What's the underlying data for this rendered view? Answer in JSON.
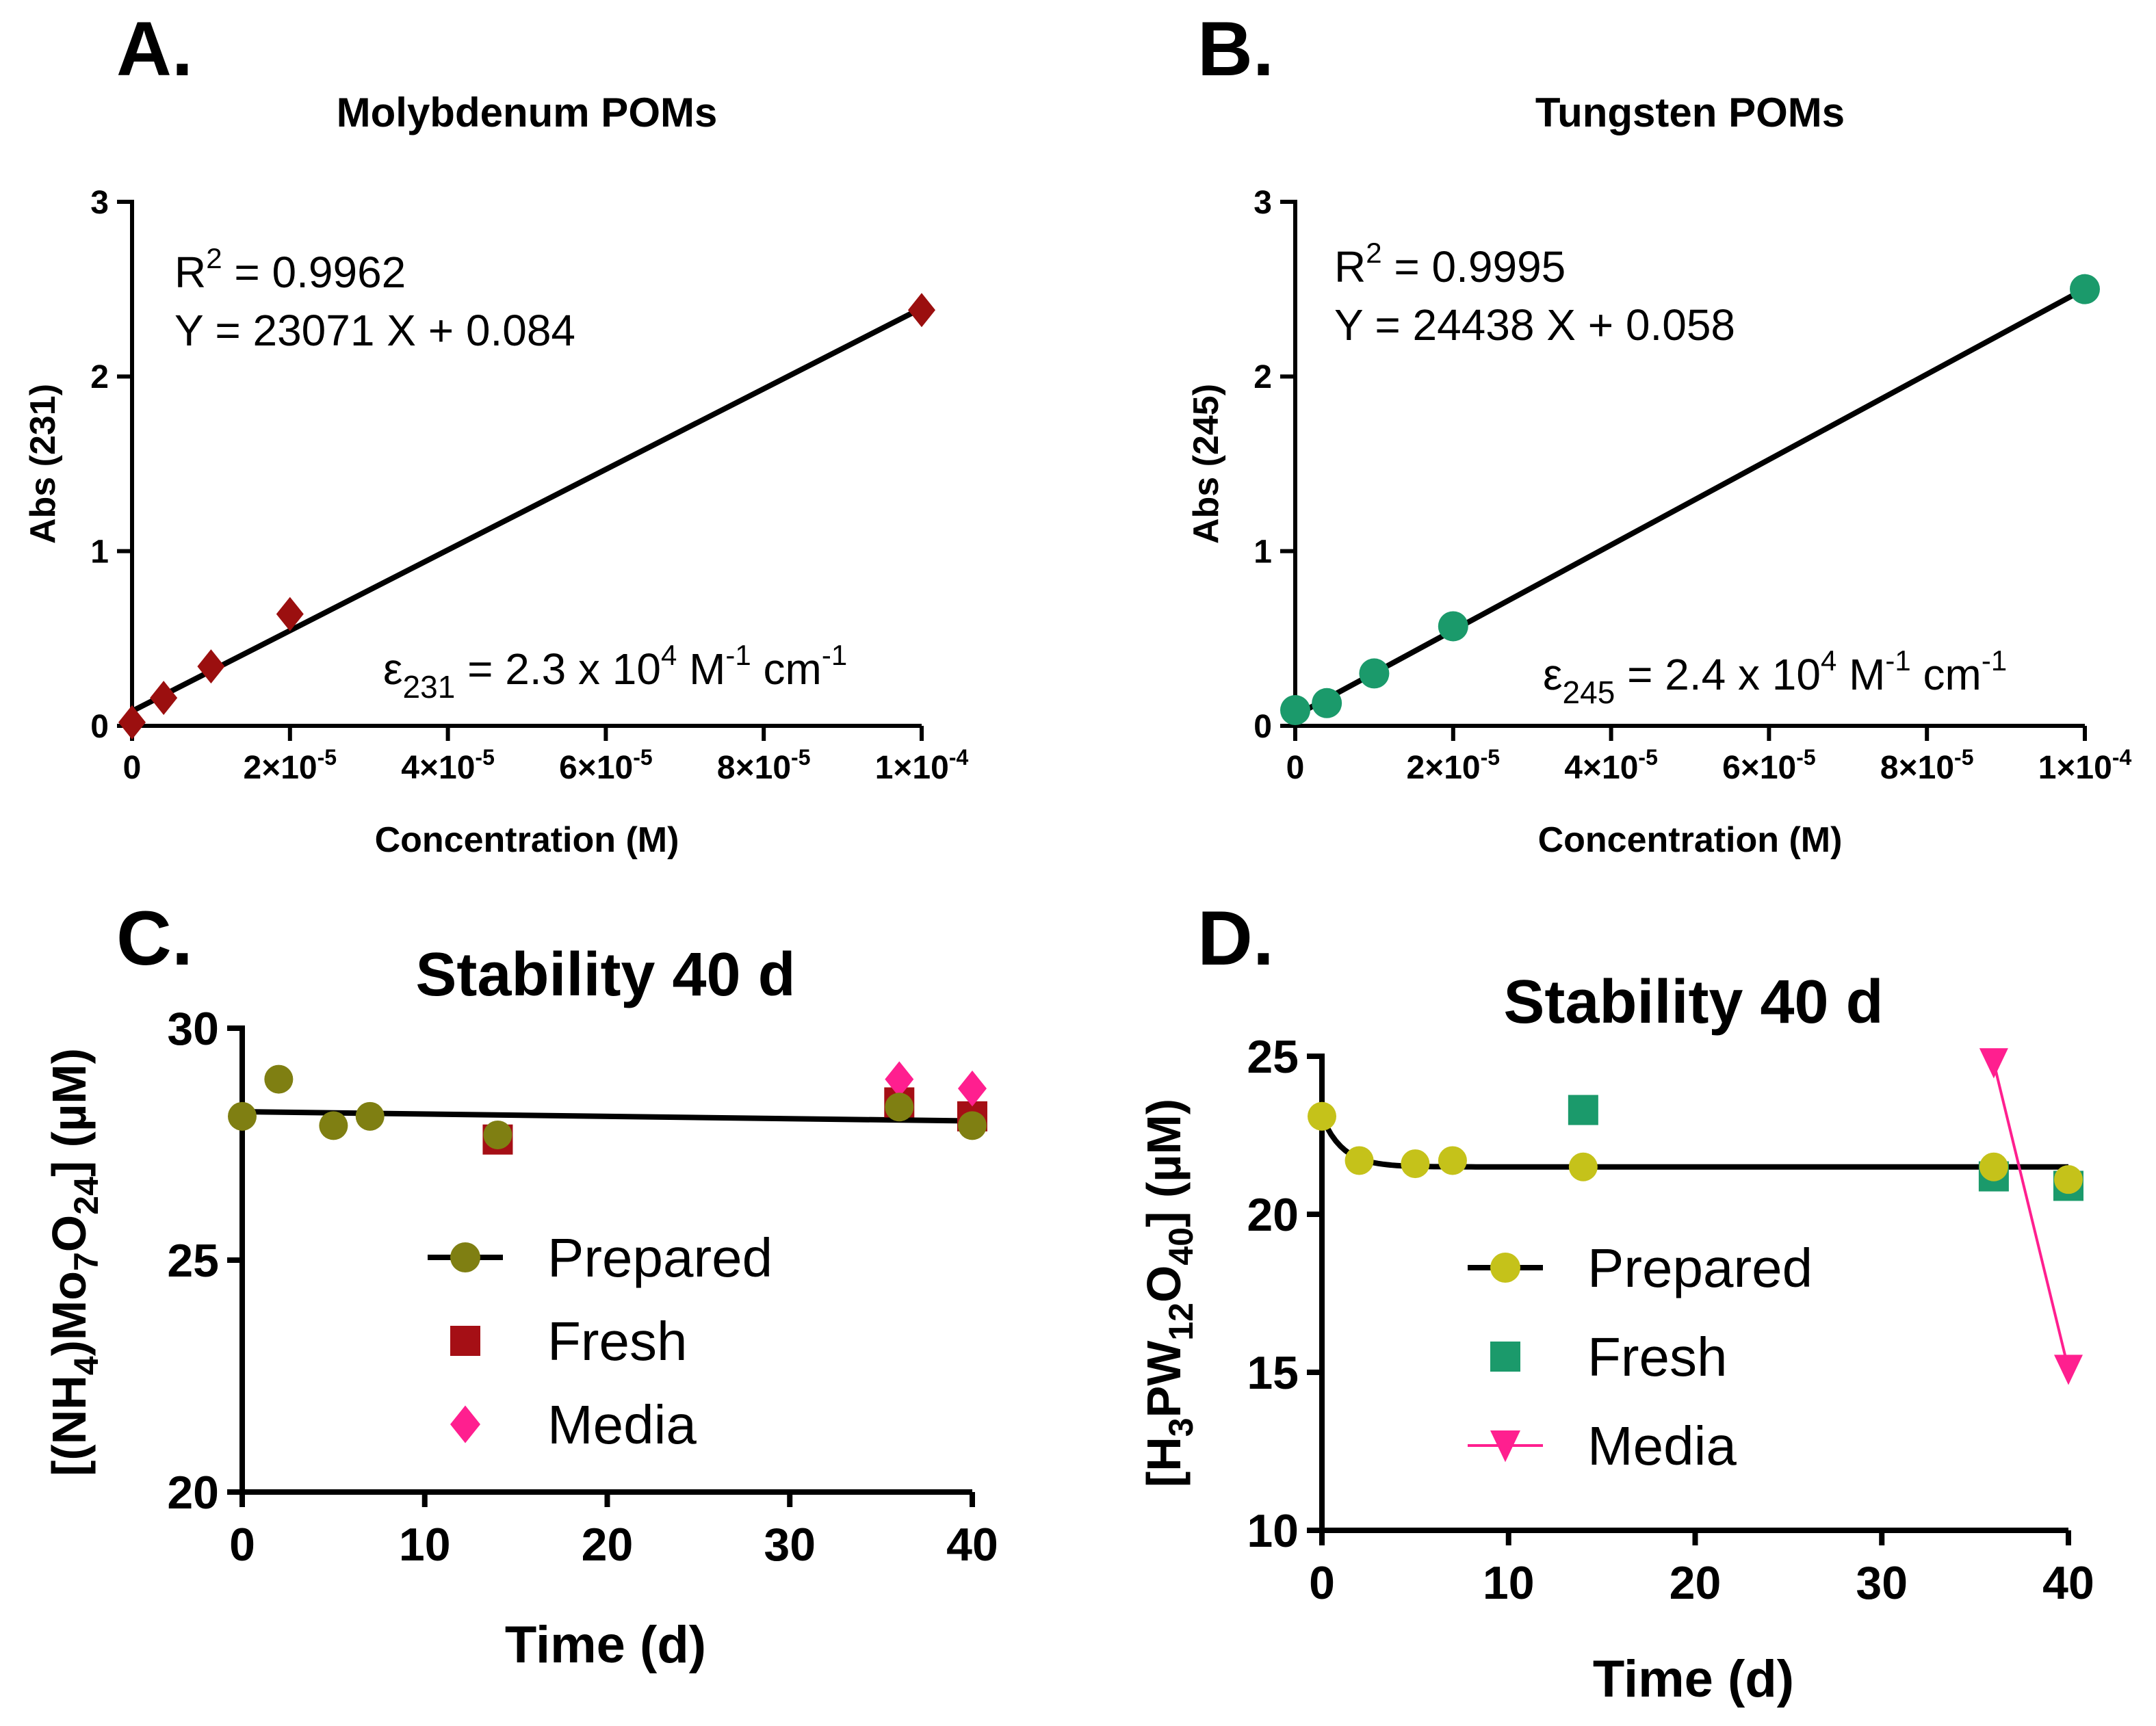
{
  "colors": {
    "moly": "#9b0f0f",
    "tung": "#1b9a6b",
    "prepared_c": "#7f7f12",
    "fresh_c": "#a50f15",
    "media": "#ff1f8f",
    "prepared_d": "#c5c21a",
    "fresh_d": "#1b9a6b"
  },
  "chart_data": [
    {
      "panel": "A.",
      "type": "scatter",
      "title": "Molybdenum POMs",
      "xlabel": "Concentration (M)",
      "ylabel": "Abs (231)",
      "xlim": [
        0,
        0.0001
      ],
      "ylim": [
        0,
        3
      ],
      "yticks": [
        "0",
        "1",
        "2",
        "3"
      ],
      "xticks": [
        {
          "base": "0",
          "exp": ""
        },
        {
          "base": "2×10",
          "exp": "-5"
        },
        {
          "base": "4×10",
          "exp": "-5"
        },
        {
          "base": "6×10",
          "exp": "-5"
        },
        {
          "base": "8×10",
          "exp": "-5"
        },
        {
          "base": "1×10",
          "exp": "-4"
        }
      ],
      "x": [
        0,
        4e-06,
        1e-05,
        2e-05,
        0.0001
      ],
      "y": [
        0.02,
        0.16,
        0.34,
        0.64,
        2.38
      ],
      "fit": {
        "slope": 23071,
        "intercept": 0.084
      },
      "annot_r2": {
        "pre": "R",
        "sup": "2",
        "post": " = 0.9962"
      },
      "annot_eq": "Y = 23071 X + 0.084",
      "annot_eps": {
        "sym": "ε",
        "sub": "231",
        "mid": " = 2.3 x 10",
        "e1": "4",
        "m2": " M",
        "e2": "-1",
        "m3": " cm",
        "e3": "-1"
      }
    },
    {
      "panel": "B.",
      "type": "scatter",
      "title": "Tungsten POMs",
      "xlabel": "Concentration (M)",
      "ylabel": "Abs (245)",
      "xlim": [
        0,
        0.0001
      ],
      "ylim": [
        0,
        3
      ],
      "yticks": [
        "0",
        "1",
        "2",
        "3"
      ],
      "xticks": [
        {
          "base": "0",
          "exp": ""
        },
        {
          "base": "2×10",
          "exp": "-5"
        },
        {
          "base": "4×10",
          "exp": "-5"
        },
        {
          "base": "6×10",
          "exp": "-5"
        },
        {
          "base": "8×10",
          "exp": "-5"
        },
        {
          "base": "1×10",
          "exp": "-4"
        }
      ],
      "x": [
        0,
        4e-06,
        1e-05,
        2e-05,
        0.0001
      ],
      "y": [
        0.09,
        0.13,
        0.3,
        0.57,
        2.5
      ],
      "fit": {
        "slope": 24438,
        "intercept": 0.058
      },
      "annot_r2": {
        "pre": "R",
        "sup": "2",
        "post": " = 0.9995"
      },
      "annot_eq": "Y = 24438 X + 0.058",
      "annot_eps": {
        "sym": "ε",
        "sub": "245",
        "mid": " = 2.4 x 10",
        "e1": "4",
        "m2": " M",
        "e2": "-1",
        "m3": " cm",
        "e3": "-1"
      }
    },
    {
      "panel": "C.",
      "type": "scatter",
      "title": "Stability 40 d",
      "xlabel": "Time (d)",
      "ylabel": {
        "a": "[(NH",
        "s1": "4",
        "b": ")Mo",
        "s2": "7",
        "c": "O",
        "s3": "24",
        "d": "] (µM)"
      },
      "xlim": [
        0,
        40
      ],
      "ylim": [
        20,
        30
      ],
      "xticks": [
        "0",
        "10",
        "20",
        "30",
        "40"
      ],
      "yticks": [
        "20",
        "25",
        "30"
      ],
      "series": [
        {
          "name": "Prepared",
          "marker": "circle",
          "x": [
            0,
            2,
            5,
            7,
            14,
            36,
            40
          ],
          "y": [
            28.1,
            28.9,
            27.9,
            28.1,
            27.7,
            28.3,
            27.9
          ]
        },
        {
          "name": "Fresh",
          "marker": "square",
          "x": [
            14,
            36,
            40
          ],
          "y": [
            27.6,
            28.4,
            28.1
          ]
        },
        {
          "name": "Media",
          "marker": "diamond",
          "x": [
            36,
            40
          ],
          "y": [
            28.9,
            28.7
          ]
        }
      ],
      "fit": {
        "from": [
          0,
          28.2
        ],
        "to": [
          40,
          28.0
        ]
      }
    },
    {
      "panel": "D.",
      "type": "scatter",
      "title": "Stability 40 d",
      "xlabel": "Time (d)",
      "ylabel": {
        "a": "[H",
        "s1": "3",
        "b": "PW",
        "s2": "12",
        "c": "O",
        "s3": "40",
        "d": "] (µM)"
      },
      "xlim": [
        0,
        40
      ],
      "ylim": [
        10,
        25
      ],
      "xticks": [
        "0",
        "10",
        "20",
        "30",
        "40"
      ],
      "yticks": [
        "10",
        "15",
        "20",
        "25"
      ],
      "series": [
        {
          "name": "Prepared",
          "marker": "circle",
          "x": [
            0,
            2,
            5,
            7,
            14,
            36,
            40
          ],
          "y": [
            23.1,
            21.7,
            21.6,
            21.7,
            21.5,
            21.5,
            21.1
          ]
        },
        {
          "name": "Fresh",
          "marker": "square",
          "x": [
            14,
            36,
            40
          ],
          "y": [
            23.3,
            21.2,
            20.9
          ]
        },
        {
          "name": "Media",
          "marker": "triangle-down",
          "x": [
            36,
            40
          ],
          "y": [
            24.8,
            15.1
          ]
        }
      ],
      "fit": {
        "plateau": 21.5,
        "y0": 23.1,
        "k": 0.9
      }
    }
  ]
}
